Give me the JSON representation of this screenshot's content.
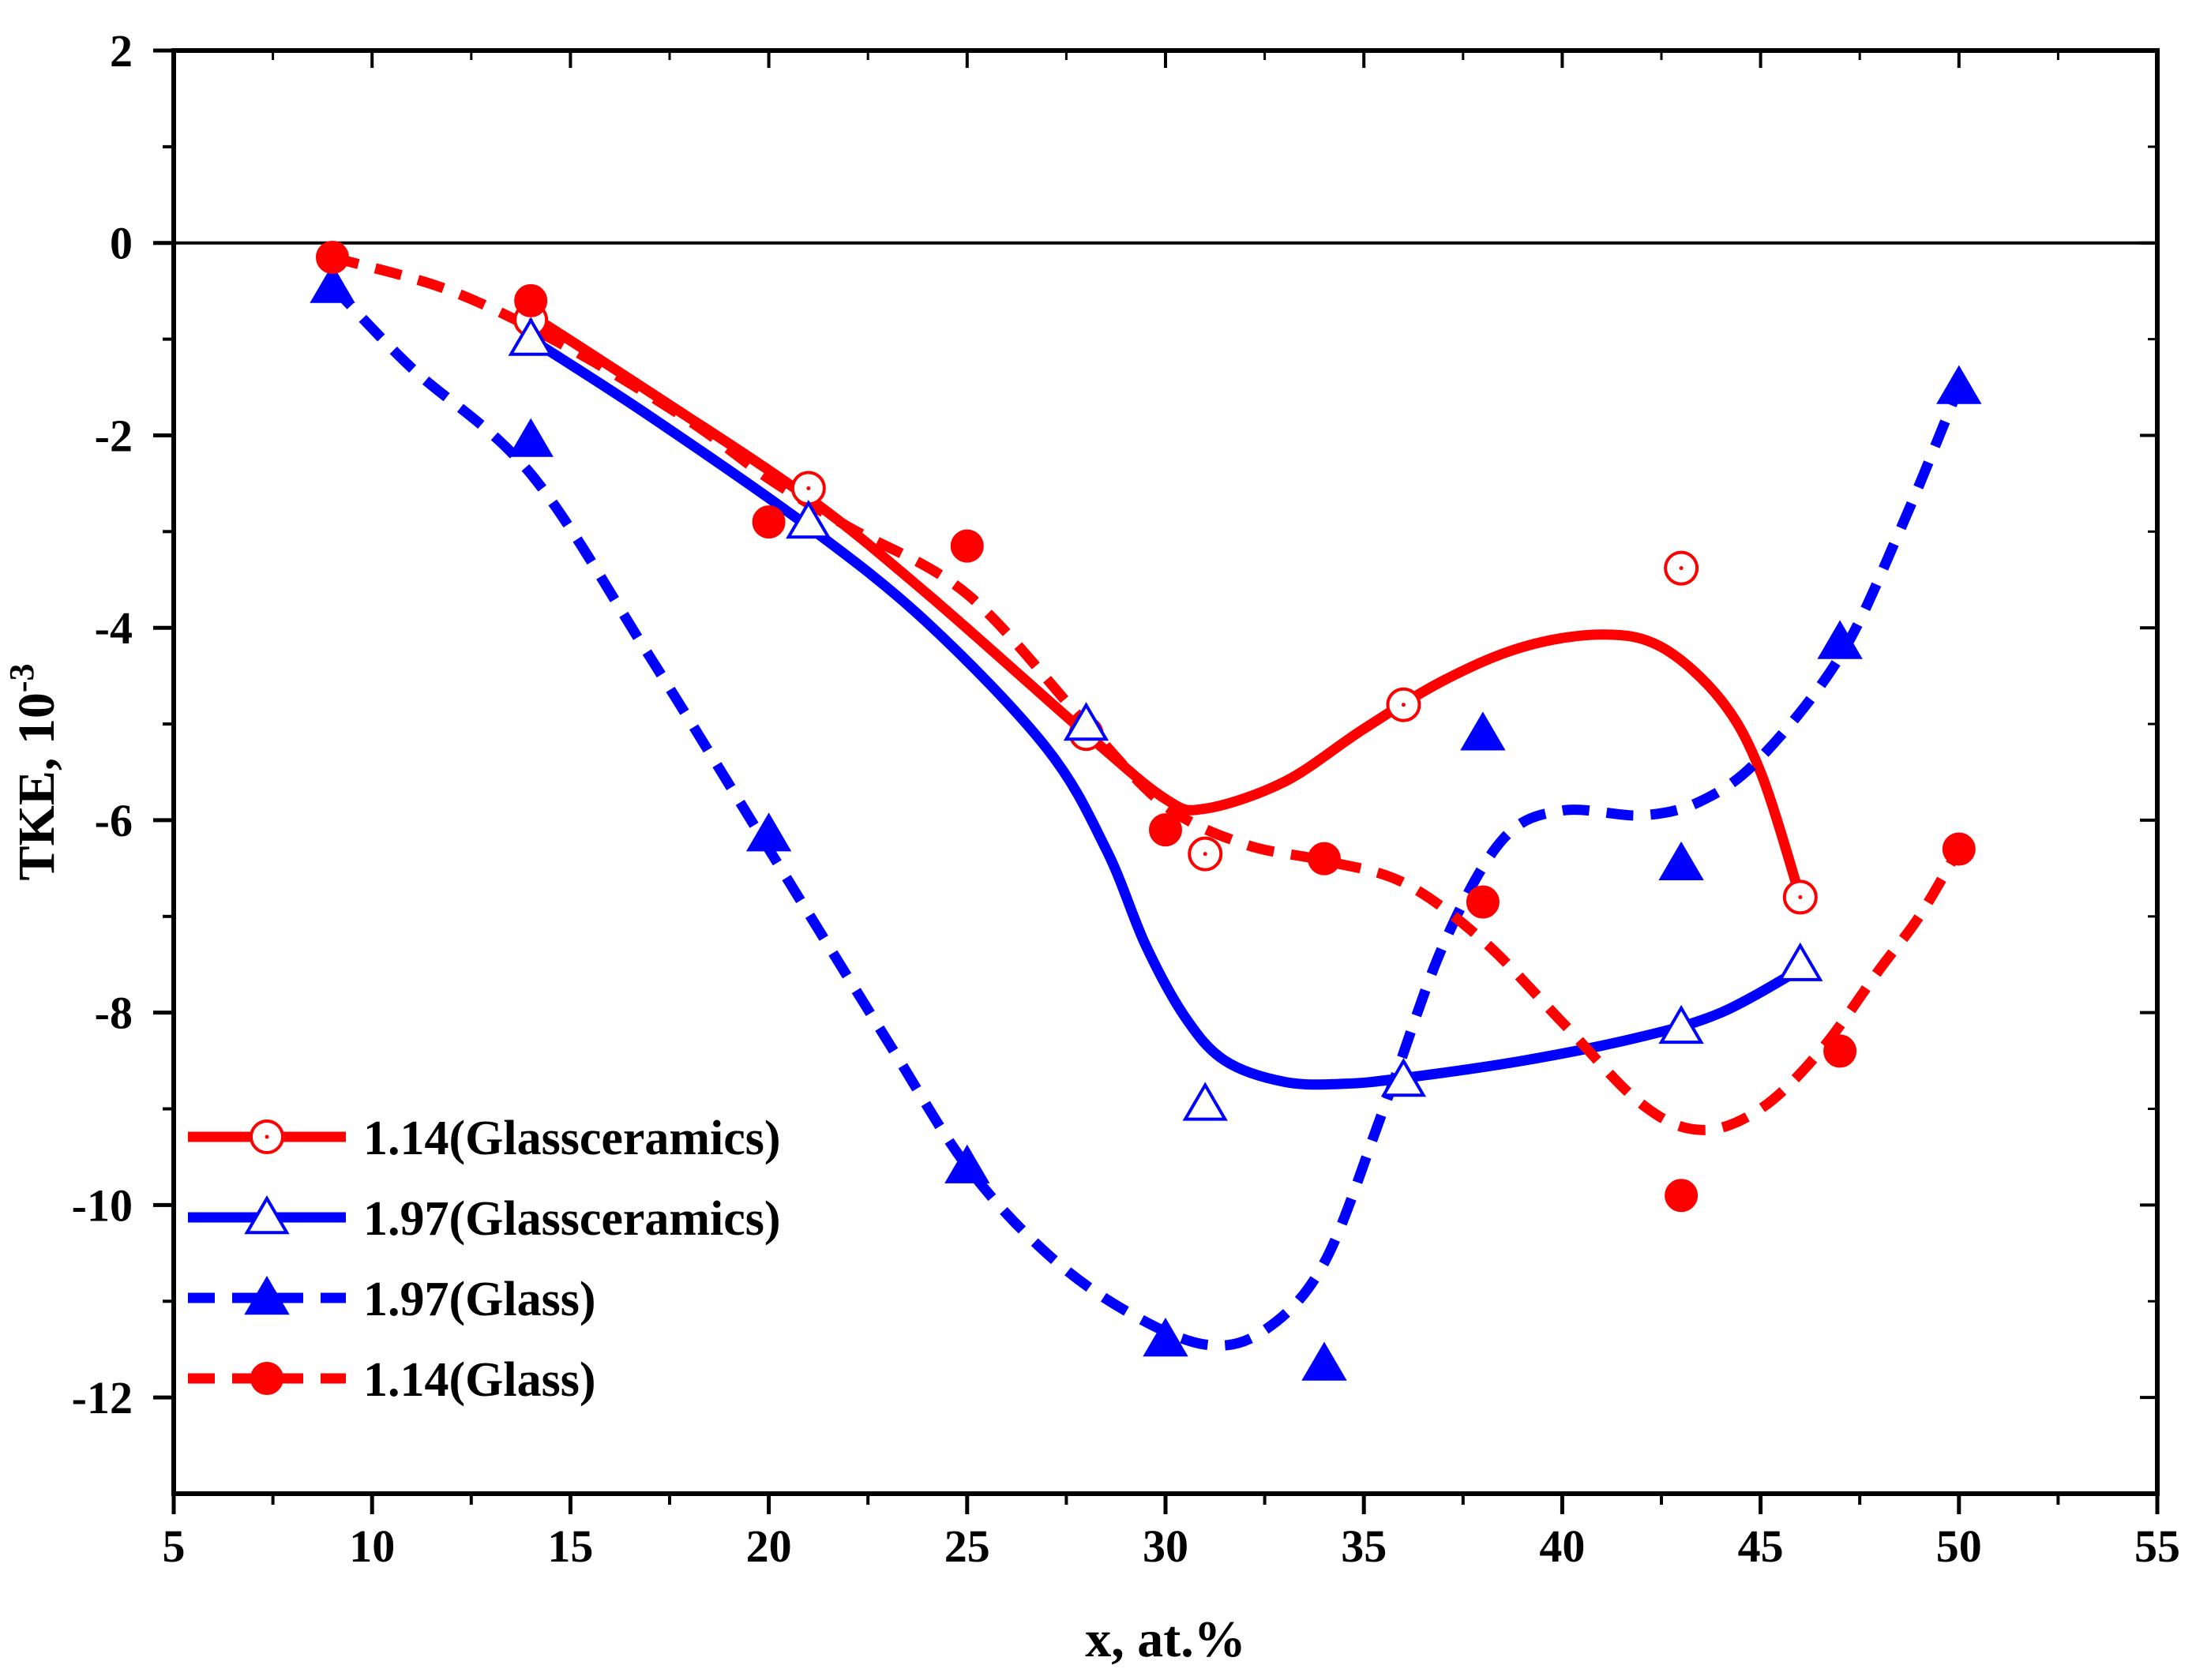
{
  "chart_data": {
    "type": "line",
    "title": "",
    "xlabel": "x, at.%",
    "ylabel_main": "TKE, 10",
    "ylabel_exp": "-3",
    "xlim": [
      5,
      55
    ],
    "ylim": [
      -13,
      2
    ],
    "x_ticks": [
      5,
      10,
      15,
      20,
      25,
      30,
      35,
      40,
      45,
      50,
      55
    ],
    "y_ticks": [
      2,
      0,
      -2,
      -4,
      -6,
      -8,
      -10,
      -12
    ],
    "reference_line_y": 0,
    "legend_position": "bottom-left",
    "series": [
      {
        "name": "1.14(Glassceramics)",
        "color": "#ff0000",
        "line": "solid",
        "marker": "open-circle-dot",
        "points": [
          [
            14,
            -0.8
          ],
          [
            21,
            -2.55
          ],
          [
            28,
            -5.1
          ],
          [
            31,
            -6.35
          ],
          [
            36,
            -4.8
          ],
          [
            43,
            -3.38
          ],
          [
            46,
            -6.8
          ]
        ],
        "curve": [
          [
            14,
            -0.75
          ],
          [
            17,
            -1.55
          ],
          [
            21,
            -2.65
          ],
          [
            24,
            -3.65
          ],
          [
            28,
            -5.1
          ],
          [
            30,
            -5.78
          ],
          [
            31,
            -5.88
          ],
          [
            33,
            -5.6
          ],
          [
            35,
            -5.05
          ],
          [
            37,
            -4.55
          ],
          [
            39,
            -4.2
          ],
          [
            41,
            -4.07
          ],
          [
            42.5,
            -4.2
          ],
          [
            44,
            -4.75
          ],
          [
            45,
            -5.5
          ],
          [
            46,
            -6.8
          ]
        ]
      },
      {
        "name": "1.97(Glassceramics)",
        "color": "#0000ff",
        "line": "solid",
        "marker": "open-triangle",
        "points": [
          [
            14,
            -1.0
          ],
          [
            21,
            -2.9
          ],
          [
            28,
            -5.0
          ],
          [
            31,
            -8.95
          ],
          [
            36,
            -8.7
          ],
          [
            43,
            -8.15
          ],
          [
            46,
            -7.5
          ]
        ],
        "curve": [
          [
            14,
            -1.0
          ],
          [
            17,
            -1.8
          ],
          [
            21,
            -2.95
          ],
          [
            24,
            -3.95
          ],
          [
            27,
            -5.25
          ],
          [
            28.5,
            -6.3
          ],
          [
            29.5,
            -7.3
          ],
          [
            30.5,
            -8.05
          ],
          [
            31.5,
            -8.5
          ],
          [
            33,
            -8.72
          ],
          [
            34.5,
            -8.74
          ],
          [
            36,
            -8.68
          ],
          [
            39,
            -8.5
          ],
          [
            42,
            -8.25
          ],
          [
            44,
            -8.0
          ],
          [
            46,
            -7.55
          ]
        ]
      },
      {
        "name": "1.97(Glass)",
        "color": "#0000ff",
        "line": "dashed",
        "marker": "filled-triangle",
        "points": [
          [
            9,
            -0.45
          ],
          [
            14,
            -2.05
          ],
          [
            20,
            -6.15
          ],
          [
            25,
            -9.6
          ],
          [
            30,
            -11.4
          ],
          [
            34,
            -11.65
          ],
          [
            38,
            -5.1
          ],
          [
            43,
            -6.45
          ],
          [
            47,
            -4.15
          ],
          [
            50,
            -1.5
          ]
        ],
        "curve": [
          [
            9,
            -0.45
          ],
          [
            11,
            -1.3
          ],
          [
            14,
            -2.4
          ],
          [
            17,
            -4.3
          ],
          [
            20,
            -6.3
          ],
          [
            23,
            -8.3
          ],
          [
            25,
            -9.6
          ],
          [
            27,
            -10.5
          ],
          [
            29,
            -11.1
          ],
          [
            31,
            -11.45
          ],
          [
            32.5,
            -11.3
          ],
          [
            34,
            -10.6
          ],
          [
            35.5,
            -9.0
          ],
          [
            37,
            -7.3
          ],
          [
            38.5,
            -6.2
          ],
          [
            40,
            -5.9
          ],
          [
            42,
            -5.95
          ],
          [
            43.5,
            -5.8
          ],
          [
            45,
            -5.35
          ],
          [
            47,
            -4.3
          ],
          [
            48.5,
            -3.0
          ],
          [
            50,
            -1.5
          ]
        ]
      },
      {
        "name": "1.14(Glass)",
        "color": "#ff0000",
        "line": "dashed",
        "marker": "filled-circle",
        "points": [
          [
            9,
            -0.15
          ],
          [
            14,
            -0.6
          ],
          [
            20,
            -2.9
          ],
          [
            25,
            -3.15
          ],
          [
            30,
            -6.1
          ],
          [
            34,
            -6.4
          ],
          [
            38,
            -6.85
          ],
          [
            43,
            -9.9
          ],
          [
            47,
            -8.4
          ],
          [
            50,
            -6.3
          ]
        ],
        "curve": [
          [
            9,
            -0.15
          ],
          [
            12,
            -0.5
          ],
          [
            15,
            -1.1
          ],
          [
            18,
            -1.85
          ],
          [
            20,
            -2.45
          ],
          [
            22,
            -2.95
          ],
          [
            25,
            -3.65
          ],
          [
            28,
            -5.0
          ],
          [
            30,
            -5.85
          ],
          [
            32,
            -6.25
          ],
          [
            34,
            -6.42
          ],
          [
            36,
            -6.65
          ],
          [
            38,
            -7.25
          ],
          [
            40,
            -8.1
          ],
          [
            42,
            -8.95
          ],
          [
            43.5,
            -9.22
          ],
          [
            45,
            -9.0
          ],
          [
            46.5,
            -8.4
          ],
          [
            48,
            -7.55
          ],
          [
            49,
            -7.0
          ],
          [
            50,
            -6.3
          ]
        ]
      }
    ]
  }
}
